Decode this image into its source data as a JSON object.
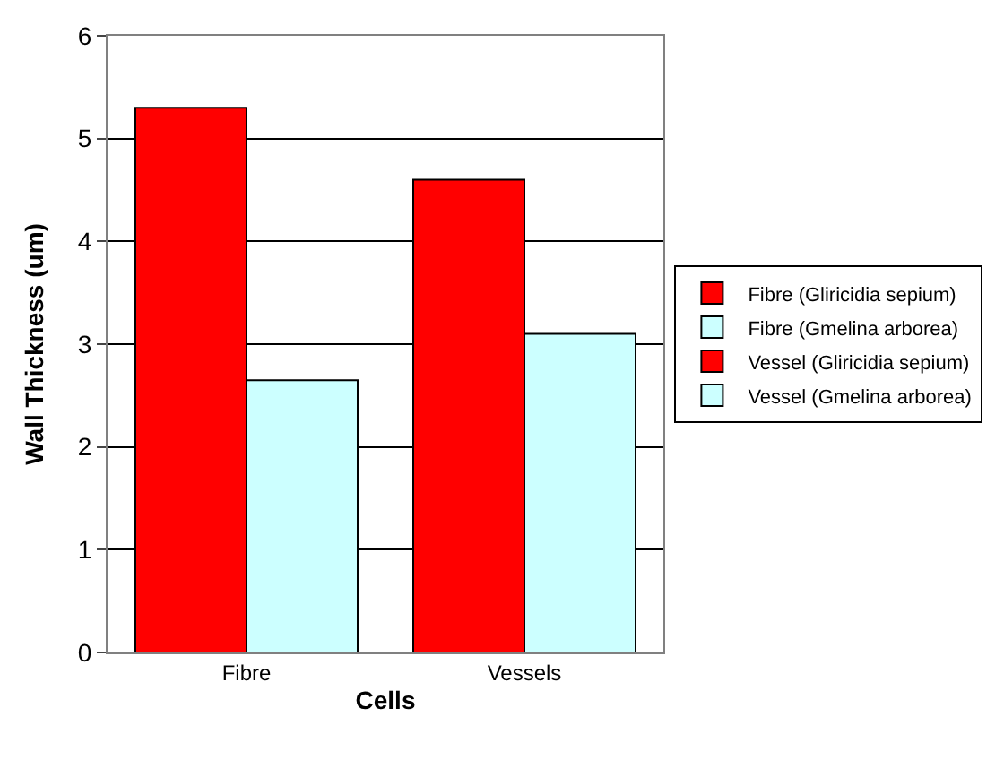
{
  "chart_data": {
    "type": "bar",
    "xlabel": "Cells",
    "ylabel": "Wall Thickness (um)",
    "categories": [
      "Fibre",
      "Vessels"
    ],
    "series": [
      {
        "name": "Fibre (Gliricidia sepium)",
        "color": "#ff0000",
        "values": [
          5.3,
          null
        ]
      },
      {
        "name": "Fibre (Gmelina arborea)",
        "color": "#ccffff",
        "values": [
          2.65,
          null
        ]
      },
      {
        "name": "Vessel (Gliricidia sepium)",
        "color": "#ff0000",
        "values": [
          null,
          4.6
        ]
      },
      {
        "name": "Vessel (Gmelina arborea)",
        "color": "#ccffff",
        "values": [
          null,
          3.1
        ]
      }
    ],
    "ylim": [
      0,
      6
    ],
    "yticks": [
      0,
      1,
      2,
      3,
      4,
      5,
      6
    ],
    "grid": "y",
    "legend": "right"
  }
}
